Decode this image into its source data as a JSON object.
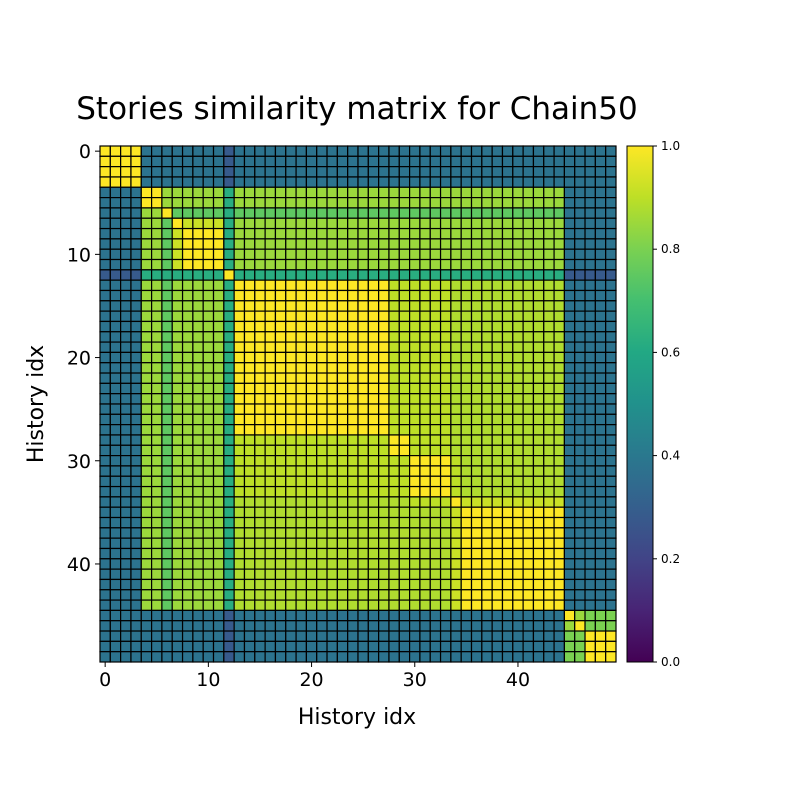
{
  "chart_data": {
    "type": "heatmap",
    "title": "Stories similarity matrix for Chain50",
    "xlabel": "History idx",
    "ylabel": "History idx",
    "size": 50,
    "xticks": [
      0,
      10,
      20,
      30,
      40
    ],
    "yticks": [
      0,
      10,
      20,
      30,
      40
    ],
    "colormap": "viridis",
    "vmin": 0.0,
    "vmax": 1.0,
    "colorbar_ticks": [
      "0.0",
      "0.2",
      "0.4",
      "0.6",
      "0.8",
      "1.0"
    ],
    "cell_edge_color": "#000000",
    "groups": [
      {
        "start": 0,
        "end": 3
      },
      {
        "start": 4,
        "end": 5
      },
      {
        "start": 6,
        "end": 6
      },
      {
        "start": 7,
        "end": 7
      },
      {
        "start": 8,
        "end": 11
      },
      {
        "start": 12,
        "end": 12
      },
      {
        "start": 13,
        "end": 27
      },
      {
        "start": 28,
        "end": 29
      },
      {
        "start": 30,
        "end": 33
      },
      {
        "start": 34,
        "end": 34
      },
      {
        "start": 35,
        "end": 44
      },
      {
        "start": 45,
        "end": 45
      },
      {
        "start": 46,
        "end": 46
      },
      {
        "start": 47,
        "end": 49
      }
    ],
    "group_similarity": [
      [
        1.0,
        0.38,
        0.38,
        0.38,
        0.38,
        0.28,
        0.38,
        0.38,
        0.38,
        0.38,
        0.38,
        0.38,
        0.38,
        0.38
      ],
      [
        0.38,
        1.0,
        0.85,
        0.85,
        0.85,
        0.62,
        0.85,
        0.85,
        0.85,
        0.85,
        0.85,
        0.38,
        0.38,
        0.38
      ],
      [
        0.38,
        0.85,
        1.0,
        0.75,
        0.75,
        0.62,
        0.75,
        0.75,
        0.75,
        0.75,
        0.75,
        0.38,
        0.38,
        0.38
      ],
      [
        0.38,
        0.85,
        0.75,
        1.0,
        0.92,
        0.62,
        0.85,
        0.85,
        0.85,
        0.85,
        0.85,
        0.38,
        0.38,
        0.38
      ],
      [
        0.38,
        0.85,
        0.75,
        0.92,
        1.0,
        0.62,
        0.85,
        0.85,
        0.85,
        0.85,
        0.85,
        0.38,
        0.38,
        0.38
      ],
      [
        0.28,
        0.62,
        0.62,
        0.62,
        0.62,
        1.0,
        0.62,
        0.62,
        0.62,
        0.62,
        0.62,
        0.28,
        0.28,
        0.28
      ],
      [
        0.38,
        0.85,
        0.75,
        0.85,
        0.85,
        0.62,
        1.0,
        0.9,
        0.9,
        0.88,
        0.88,
        0.38,
        0.38,
        0.38
      ],
      [
        0.38,
        0.85,
        0.75,
        0.85,
        0.85,
        0.62,
        0.9,
        1.0,
        0.9,
        0.88,
        0.88,
        0.38,
        0.38,
        0.38
      ],
      [
        0.38,
        0.85,
        0.75,
        0.85,
        0.85,
        0.62,
        0.9,
        0.9,
        1.0,
        0.9,
        0.88,
        0.38,
        0.38,
        0.38
      ],
      [
        0.38,
        0.85,
        0.75,
        0.85,
        0.85,
        0.62,
        0.88,
        0.88,
        0.9,
        1.0,
        0.92,
        0.38,
        0.38,
        0.38
      ],
      [
        0.38,
        0.85,
        0.75,
        0.85,
        0.85,
        0.62,
        0.88,
        0.88,
        0.88,
        0.92,
        1.0,
        0.38,
        0.38,
        0.38
      ],
      [
        0.38,
        0.38,
        0.38,
        0.38,
        0.38,
        0.28,
        0.38,
        0.38,
        0.38,
        0.38,
        0.38,
        1.0,
        0.85,
        0.8
      ],
      [
        0.38,
        0.38,
        0.38,
        0.38,
        0.38,
        0.28,
        0.38,
        0.38,
        0.38,
        0.38,
        0.38,
        0.85,
        1.0,
        0.8
      ],
      [
        0.38,
        0.38,
        0.38,
        0.38,
        0.38,
        0.28,
        0.38,
        0.38,
        0.38,
        0.38,
        0.38,
        0.8,
        0.8,
        1.0
      ]
    ]
  }
}
